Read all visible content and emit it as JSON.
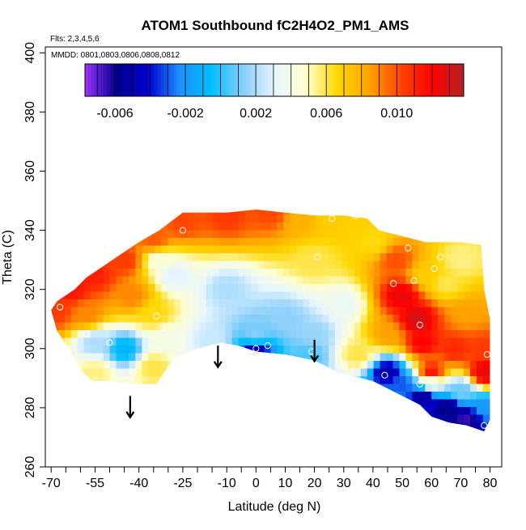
{
  "chart_data": {
    "type": "heatmap",
    "title": "ATOM1 Southbound fC2H4O2_PM1_AMS",
    "notes": [
      "Flts: 2,3,4,5,6",
      "MMDD: 0801,0803,0806,0808,0812"
    ],
    "xlabel": "Latitude (deg N)",
    "ylabel": "Theta (C)",
    "xlim": [
      -72,
      84
    ],
    "ylim": [
      260,
      402
    ],
    "x_ticks": [
      -70,
      -65,
      -60,
      -55,
      -50,
      -45,
      -40,
      -35,
      -30,
      -25,
      -20,
      -15,
      -10,
      -5,
      0,
      5,
      10,
      15,
      20,
      25,
      30,
      35,
      40,
      45,
      50,
      55,
      60,
      65,
      70,
      75,
      80
    ],
    "x_tick_labels": [
      "-70",
      "",
      "",
      "-55",
      "",
      "",
      "-40",
      "",
      "",
      "-25",
      "",
      "",
      "-10",
      "",
      "0",
      "",
      "10",
      "",
      "20",
      "",
      "30",
      "",
      "40",
      "",
      "50",
      "",
      "60",
      "",
      "70",
      "",
      "80"
    ],
    "y_ticks": [
      260,
      280,
      300,
      320,
      340,
      360,
      380,
      400
    ],
    "y_tick_labels": [
      "260",
      "280",
      "300",
      "320",
      "340",
      "360",
      "380",
      "400"
    ],
    "colorbar": {
      "min": -0.0077,
      "max": 0.0138,
      "ticks": [
        -0.006,
        -0.002,
        0.002,
        0.006,
        0.01
      ],
      "tick_labels": [
        "-0.006",
        "-0.002",
        "0.002",
        "0.006",
        "0.010"
      ],
      "colors": [
        "#9b30ff",
        "#00008b",
        "#0000cd",
        "#1e90ff",
        "#00bfff",
        "#87cefa",
        "#e6f5ff",
        "#ffffd0",
        "#ffd700",
        "#ffa500",
        "#ff4500",
        "#ff0000",
        "#b22222"
      ]
    },
    "arrows_x": [
      -43,
      -13,
      20
    ],
    "field_points": [
      {
        "x": -68,
        "y": 313,
        "v": 0.0105
      },
      {
        "x": -63,
        "y": 320,
        "v": 0.0115
      },
      {
        "x": -55,
        "y": 325,
        "v": 0.0112
      },
      {
        "x": -45,
        "y": 330,
        "v": 0.0105
      },
      {
        "x": -35,
        "y": 337,
        "v": 0.0098
      },
      {
        "x": -25,
        "y": 343,
        "v": 0.0102
      },
      {
        "x": -10,
        "y": 345,
        "v": 0.0105
      },
      {
        "x": 5,
        "y": 346,
        "v": 0.0102
      },
      {
        "x": 15,
        "y": 344,
        "v": 0.008
      },
      {
        "x": 25,
        "y": 344,
        "v": 0.007
      },
      {
        "x": 35,
        "y": 343,
        "v": 0.0068
      },
      {
        "x": 20,
        "y": 330,
        "v": 0.006
      },
      {
        "x": -28,
        "y": 325,
        "v": 0.003
      },
      {
        "x": -33,
        "y": 330,
        "v": 0.0045
      },
      {
        "x": -10,
        "y": 320,
        "v": 0.002
      },
      {
        "x": 0,
        "y": 305,
        "v": 0.0012
      },
      {
        "x": 10,
        "y": 310,
        "v": 0.0014
      },
      {
        "x": 20,
        "y": 305,
        "v": 0.0016
      },
      {
        "x": 30,
        "y": 315,
        "v": 0.0035
      },
      {
        "x": -35,
        "y": 312,
        "v": 0.0065
      },
      {
        "x": -42,
        "y": 318,
        "v": 0.009
      },
      {
        "x": -58,
        "y": 312,
        "v": 0.009
      },
      {
        "x": -55,
        "y": 302,
        "v": 0.002
      },
      {
        "x": -45,
        "y": 300,
        "v": -0.001
      },
      {
        "x": -35,
        "y": 294,
        "v": 0.006
      },
      {
        "x": -55,
        "y": 292,
        "v": 0.0055
      },
      {
        "x": -30,
        "y": 303,
        "v": 0.004
      },
      {
        "x": -15,
        "y": 303,
        "v": 0.0025
      },
      {
        "x": 0,
        "y": 299,
        "v": -0.0045
      },
      {
        "x": 18,
        "y": 298,
        "v": 0.0005
      },
      {
        "x": 35,
        "y": 298,
        "v": 0.006
      },
      {
        "x": 45,
        "y": 305,
        "v": 0.0085
      },
      {
        "x": 50,
        "y": 318,
        "v": 0.0125
      },
      {
        "x": 55,
        "y": 310,
        "v": 0.013
      },
      {
        "x": 57,
        "y": 302,
        "v": 0.012
      },
      {
        "x": 58,
        "y": 325,
        "v": 0.007
      },
      {
        "x": 48,
        "y": 330,
        "v": 0.01
      },
      {
        "x": 40,
        "y": 336,
        "v": 0.0065
      },
      {
        "x": 65,
        "y": 322,
        "v": 0.006
      },
      {
        "x": 70,
        "y": 330,
        "v": 0.0055
      },
      {
        "x": 72,
        "y": 312,
        "v": 0.0085
      },
      {
        "x": 68,
        "y": 300,
        "v": 0.011
      },
      {
        "x": 78,
        "y": 300,
        "v": 0.0105
      },
      {
        "x": 78,
        "y": 292,
        "v": 0.0125
      },
      {
        "x": 60,
        "y": 292,
        "v": 0.0115
      },
      {
        "x": 45,
        "y": 292,
        "v": -0.005
      },
      {
        "x": 50,
        "y": 288,
        "v": -0.003
      },
      {
        "x": 57,
        "y": 284,
        "v": -0.0055
      },
      {
        "x": 65,
        "y": 280,
        "v": -0.006
      },
      {
        "x": 72,
        "y": 276,
        "v": -0.0065
      },
      {
        "x": 78,
        "y": 280,
        "v": -0.002
      },
      {
        "x": 70,
        "y": 286,
        "v": 0.001
      },
      {
        "x": 60,
        "y": 288,
        "v": 0.003
      }
    ],
    "markers": [
      {
        "x": -67,
        "y": 314
      },
      {
        "x": -58,
        "y": 305
      },
      {
        "x": -50,
        "y": 302
      },
      {
        "x": -55,
        "y": 289
      },
      {
        "x": -42,
        "y": 292
      },
      {
        "x": -34,
        "y": 311
      },
      {
        "x": -32,
        "y": 307
      },
      {
        "x": -30,
        "y": 344
      },
      {
        "x": -25,
        "y": 340
      },
      {
        "x": 0,
        "y": 300
      },
      {
        "x": 4,
        "y": 301
      },
      {
        "x": 19,
        "y": 299
      },
      {
        "x": 21,
        "y": 331
      },
      {
        "x": 26,
        "y": 344
      },
      {
        "x": 30,
        "y": 295
      },
      {
        "x": 34,
        "y": 345
      },
      {
        "x": 44,
        "y": 291
      },
      {
        "x": 47,
        "y": 322
      },
      {
        "x": 52,
        "y": 334
      },
      {
        "x": 54,
        "y": 323
      },
      {
        "x": 56,
        "y": 308
      },
      {
        "x": 56,
        "y": 288
      },
      {
        "x": 61,
        "y": 327
      },
      {
        "x": 63,
        "y": 331
      },
      {
        "x": 79,
        "y": 298
      },
      {
        "x": 78,
        "y": 274
      }
    ]
  }
}
